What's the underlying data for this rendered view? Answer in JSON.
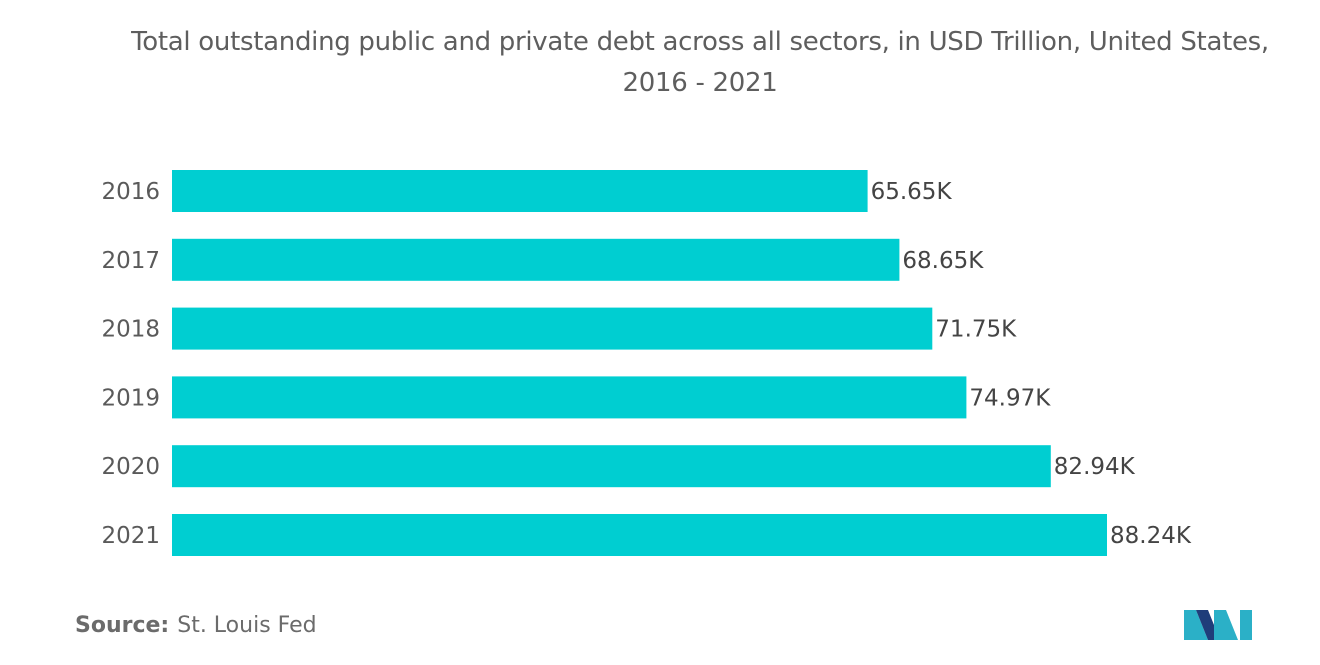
{
  "title": "Total outstanding public and private debt across all sectors, in USD Trillion, United States, 2016 - 2021",
  "source": {
    "label": "Source:",
    "text": "St. Louis Fed"
  },
  "logo": {
    "icon": "mordor-intelligence-logo-icon",
    "colors": [
      "#1f3d7a",
      "#2bb0c7"
    ]
  },
  "colors": {
    "bar": "#00ced1"
  },
  "chart_data": {
    "type": "bar",
    "orientation": "horizontal",
    "categories": [
      "2016",
      "2017",
      "2018",
      "2019",
      "2020",
      "2021"
    ],
    "values": [
      65.65,
      68.65,
      71.75,
      74.97,
      82.94,
      88.24
    ],
    "value_labels": [
      "65.65K",
      "68.65K",
      "71.75K",
      "74.97K",
      "82.94K",
      "88.24K"
    ],
    "xlim": [
      0,
      88.24
    ],
    "grid": false,
    "legend": "none"
  }
}
